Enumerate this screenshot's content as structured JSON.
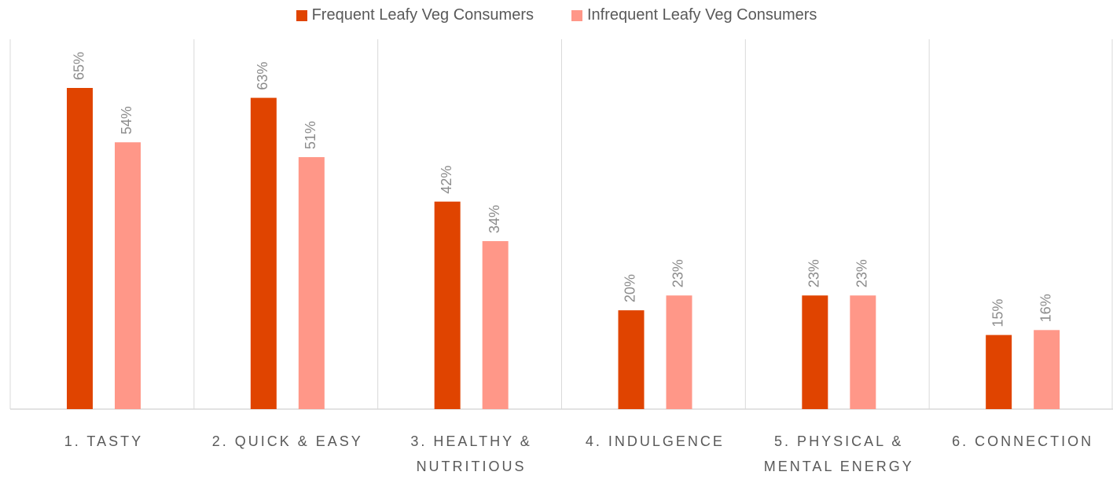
{
  "chart_data": {
    "type": "bar",
    "categories": [
      "1. TASTY",
      "2. QUICK & EASY",
      "3. HEALTHY & NUTRITIOUS",
      "4. INDULGENCE",
      "5. PHYSICAL & MENTAL ENERGY",
      "6. CONNECTION"
    ],
    "series": [
      {
        "name": "Frequent Leafy Veg Consumers",
        "color": "#e04400",
        "values": [
          65,
          63,
          42,
          20,
          23,
          15
        ],
        "value_labels": [
          "65%",
          "63%",
          "42%",
          "20%",
          "23%",
          "15%"
        ]
      },
      {
        "name": "Infrequent Leafy Veg Consumers",
        "color": "#ff9788",
        "values": [
          54,
          51,
          34,
          23,
          23,
          16
        ],
        "value_labels": [
          "54%",
          "51%",
          "34%",
          "23%",
          "23%",
          "16%"
        ]
      }
    ],
    "legend": "top",
    "grid": false
  }
}
